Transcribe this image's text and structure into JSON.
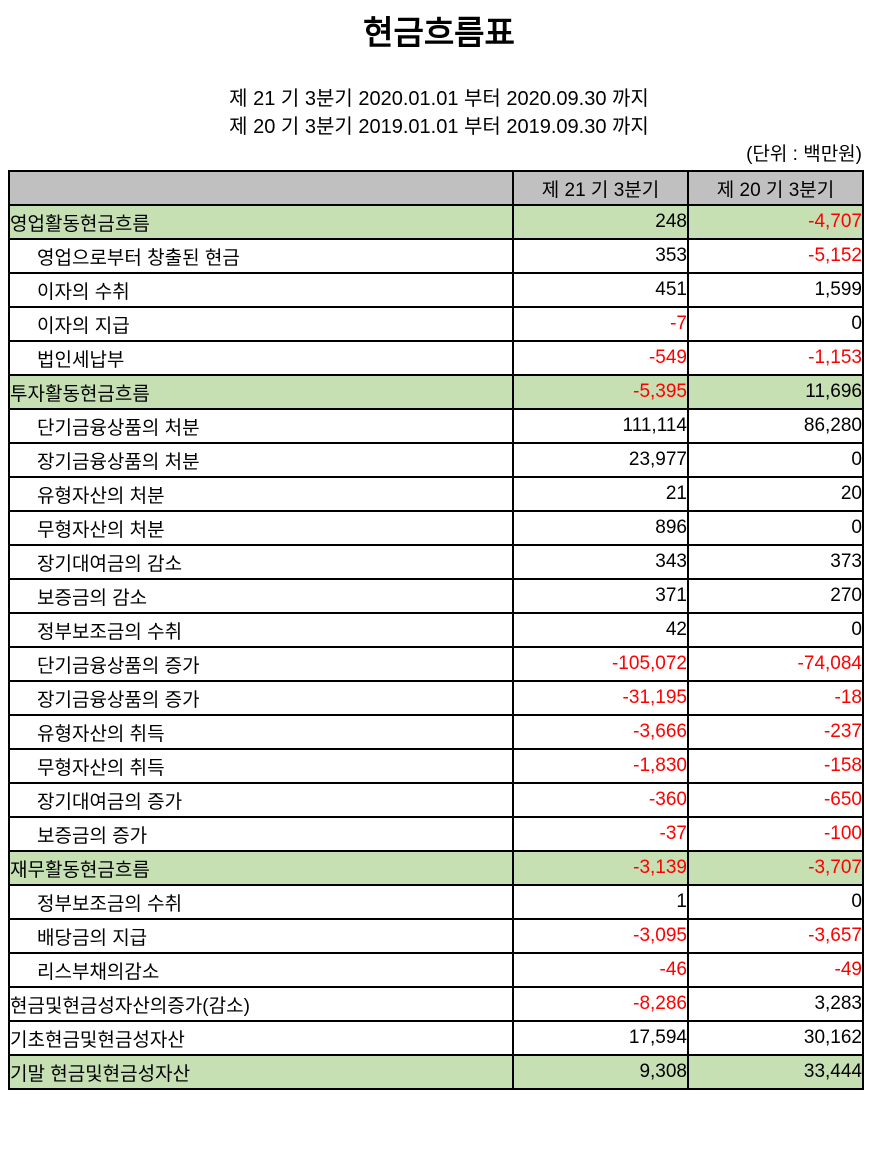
{
  "title": "현금흐름표",
  "periods": [
    "제 21 기 3분기 2020.01.01 부터 2020.09.30 까지",
    "제 20 기 3분기 2019.01.01 부터 2019.09.30 까지"
  ],
  "unit_note": "(단위 : 백만원)",
  "colors": {
    "header_bg": "#c0c0c0",
    "section_bg": "#c6e0b4",
    "negative": "#ff0000",
    "border": "#000000"
  },
  "table": {
    "columns": [
      "",
      "제 21 기 3분기",
      "제 20 기 3분기"
    ],
    "rows": [
      {
        "label": "영업활동현금흐름",
        "indent": 0,
        "section": true,
        "values": [
          "248",
          "-4,707"
        ]
      },
      {
        "label": "영업으로부터 창출된 현금",
        "indent": 1,
        "section": false,
        "values": [
          "353",
          "-5,152"
        ]
      },
      {
        "label": "이자의 수취",
        "indent": 1,
        "section": false,
        "values": [
          "451",
          "1,599"
        ]
      },
      {
        "label": "이자의 지급",
        "indent": 1,
        "section": false,
        "values": [
          "-7",
          "0"
        ]
      },
      {
        "label": "법인세납부",
        "indent": 1,
        "section": false,
        "values": [
          "-549",
          "-1,153"
        ]
      },
      {
        "label": "투자활동현금흐름",
        "indent": 0,
        "section": true,
        "values": [
          "-5,395",
          "11,696"
        ]
      },
      {
        "label": "단기금융상품의 처분",
        "indent": 1,
        "section": false,
        "values": [
          "111,114",
          "86,280"
        ]
      },
      {
        "label": "장기금융상품의 처분",
        "indent": 1,
        "section": false,
        "values": [
          "23,977",
          "0"
        ]
      },
      {
        "label": "유형자산의 처분",
        "indent": 1,
        "section": false,
        "values": [
          "21",
          "20"
        ]
      },
      {
        "label": "무형자산의 처분",
        "indent": 1,
        "section": false,
        "values": [
          "896",
          "0"
        ]
      },
      {
        "label": "장기대여금의 감소",
        "indent": 1,
        "section": false,
        "values": [
          "343",
          "373"
        ]
      },
      {
        "label": "보증금의 감소",
        "indent": 1,
        "section": false,
        "values": [
          "371",
          "270"
        ]
      },
      {
        "label": "정부보조금의 수취",
        "indent": 1,
        "section": false,
        "values": [
          "42",
          "0"
        ]
      },
      {
        "label": "단기금융상품의 증가",
        "indent": 1,
        "section": false,
        "values": [
          "-105,072",
          "-74,084"
        ]
      },
      {
        "label": "장기금융상품의 증가",
        "indent": 1,
        "section": false,
        "values": [
          "-31,195",
          "-18"
        ]
      },
      {
        "label": "유형자산의 취득",
        "indent": 1,
        "section": false,
        "values": [
          "-3,666",
          "-237"
        ]
      },
      {
        "label": "무형자산의 취득",
        "indent": 1,
        "section": false,
        "values": [
          "-1,830",
          "-158"
        ]
      },
      {
        "label": "장기대여금의 증가",
        "indent": 1,
        "section": false,
        "values": [
          "-360",
          "-650"
        ]
      },
      {
        "label": "보증금의 증가",
        "indent": 1,
        "section": false,
        "values": [
          "-37",
          "-100"
        ]
      },
      {
        "label": "재무활동현금흐름",
        "indent": 0,
        "section": true,
        "values": [
          "-3,139",
          "-3,707"
        ]
      },
      {
        "label": "정부보조금의 수취",
        "indent": 1,
        "section": false,
        "values": [
          "1",
          "0"
        ]
      },
      {
        "label": "배당금의 지급",
        "indent": 1,
        "section": false,
        "values": [
          "-3,095",
          "-3,657"
        ]
      },
      {
        "label": "리스부채의감소",
        "indent": 1,
        "section": false,
        "values": [
          "-46",
          "-49"
        ]
      },
      {
        "label": "현금및현금성자산의증가(감소)",
        "indent": 0,
        "section": false,
        "values": [
          "-8,286",
          "3,283"
        ]
      },
      {
        "label": "기초현금및현금성자산",
        "indent": 0,
        "section": false,
        "values": [
          "17,594",
          "30,162"
        ]
      },
      {
        "label": "기말 현금및현금성자산",
        "indent": 0,
        "section": true,
        "values": [
          "9,308",
          "33,444"
        ]
      }
    ]
  }
}
